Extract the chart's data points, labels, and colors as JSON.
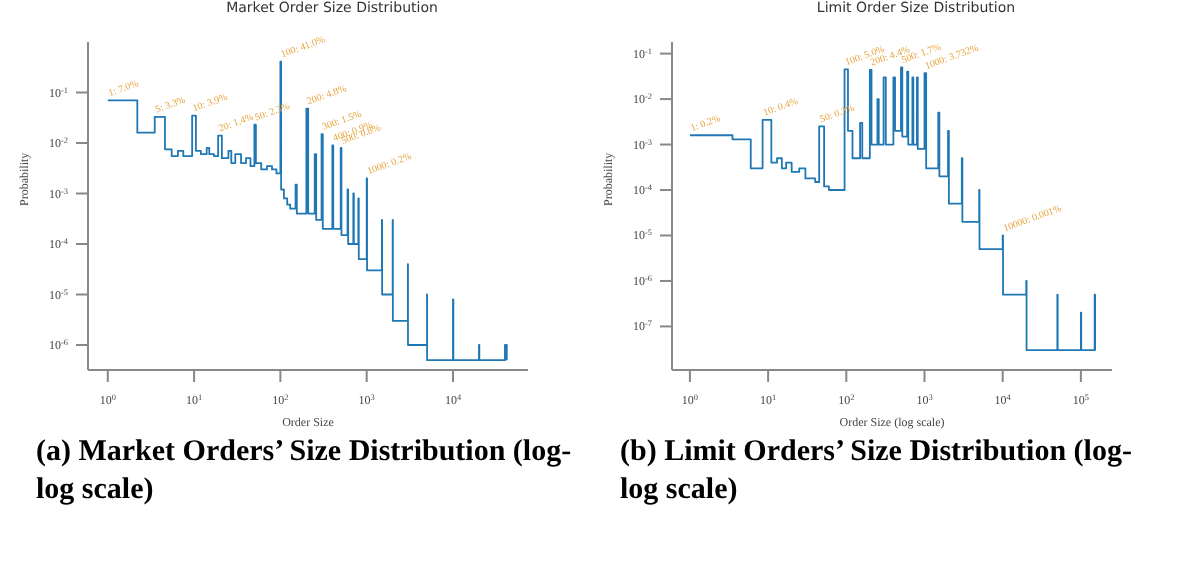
{
  "chart_data": [
    {
      "type": "step",
      "title": "Market Order Size Distribution",
      "xlabel": "Order Size",
      "ylabel": "Probability",
      "log": "xy",
      "xlim": [
        0.59,
        74000
      ],
      "ylim": [
        3.2e-07,
        1
      ],
      "xticks": [
        {
          "value": 1,
          "label": "10$^{0}$"
        },
        {
          "value": 10,
          "label": "10$^{1}$"
        },
        {
          "value": 100,
          "label": "10$^{2}$"
        },
        {
          "value": 1000,
          "label": "10$^{3}$"
        },
        {
          "value": 10000,
          "label": "10$^{4}$"
        }
      ],
      "yticks": [
        {
          "value": 0.1,
          "label": "10$^{-1}$"
        },
        {
          "value": 0.01,
          "label": "10$^{-2}$"
        },
        {
          "value": 0.001,
          "label": "10$^{-3}$"
        },
        {
          "value": 0.0001,
          "label": "10$^{-4}$"
        },
        {
          "value": 1e-05,
          "label": "10$^{-5}$"
        },
        {
          "value": 1e-06,
          "label": "10$^{-6}$"
        }
      ],
      "x": [
        1,
        2.2,
        3.5,
        4.6,
        5.5,
        6.5,
        7.5,
        9.5,
        10.5,
        12,
        14,
        15,
        17,
        19,
        21,
        25,
        27,
        30,
        35,
        40,
        45,
        50,
        52,
        60,
        70,
        80,
        90,
        100,
        102,
        110,
        120,
        130,
        150,
        155,
        200,
        210,
        250,
        260,
        300,
        310,
        400,
        410,
        500,
        510,
        600,
        610,
        700,
        710,
        800,
        810,
        1000,
        1010,
        1500,
        1510,
        2000,
        2010,
        3000,
        3010,
        5000,
        5010,
        10000,
        10100,
        20000,
        20200,
        40000,
        42000
      ],
      "series": [
        {
          "color": "#1f77b4",
          "values": [
            0.07,
            0.016,
            0.033,
            0.0075,
            0.0055,
            0.007,
            0.0055,
            0.035,
            0.007,
            0.006,
            0.008,
            0.006,
            0.0055,
            0.014,
            0.005,
            0.007,
            0.004,
            0.006,
            0.004,
            0.005,
            0.0035,
            0.023,
            0.004,
            0.003,
            0.0035,
            0.003,
            0.0025,
            0.41,
            0.0012,
            0.0008,
            0.0006,
            0.0005,
            0.0015,
            0.0004,
            0.048,
            0.0004,
            0.006,
            0.0003,
            0.015,
            0.0002,
            0.009,
            0.0002,
            0.008,
            0.00015,
            0.0012,
            0.0001,
            0.001,
            0.0001,
            0.0008,
            5e-05,
            0.002,
            3e-05,
            0.0003,
            1e-05,
            0.0003,
            3e-06,
            4e-05,
            1e-06,
            1e-05,
            5e-07,
            8e-06,
            5e-07,
            1e-06,
            5e-07,
            1e-06,
            5e-07
          ]
        }
      ],
      "annotations": [
        {
          "text": "1: 7.0%",
          "x": 1,
          "y": 0.07
        },
        {
          "text": "5: 3.3%",
          "x": 3.5,
          "y": 0.033
        },
        {
          "text": "10: 3.9%",
          "x": 9.5,
          "y": 0.035
        },
        {
          "text": "20: 1.4%",
          "x": 19,
          "y": 0.014
        },
        {
          "text": "50: 2.3%",
          "x": 50,
          "y": 0.023
        },
        {
          "text": "100: 41.0%",
          "x": 100,
          "y": 0.41
        },
        {
          "text": "200: 4.8%",
          "x": 200,
          "y": 0.048
        },
        {
          "text": "300: 1.5%",
          "x": 300,
          "y": 0.015
        },
        {
          "text": "400: 0.9%",
          "x": 400,
          "y": 0.009
        },
        {
          "text": "500: 0.8%",
          "x": 500,
          "y": 0.008
        },
        {
          "text": "1000: 0.2%",
          "x": 1000,
          "y": 0.002
        },
        "(a) Market Orders’ Size Distribution (log-log scale)"
      ]
    },
    {
      "type": "step",
      "title": "Limit Order Size Distribution",
      "xlabel": "Order Size (log scale)",
      "ylabel": "Probability",
      "log": "xy",
      "xlim": [
        0.59,
        250000
      ],
      "ylim": [
        1.1e-08,
        0.18
      ],
      "xticks": [
        {
          "value": 1,
          "label": "10$^{0}$"
        },
        {
          "value": 10,
          "label": "10$^{1}$"
        },
        {
          "value": 100,
          "label": "10$^{2}$"
        },
        {
          "value": 1000,
          "label": "10$^{3}$"
        },
        {
          "value": 10000,
          "label": "10$^{4}$"
        },
        {
          "value": 100000,
          "label": "10$^{5}$"
        }
      ],
      "yticks": [
        {
          "value": 0.1,
          "label": "10$^{-1}$"
        },
        {
          "value": 0.01,
          "label": "10$^{-2}$"
        },
        {
          "value": 0.001,
          "label": "10$^{-3}$"
        },
        {
          "value": 0.0001,
          "label": "10$^{-4}$"
        },
        {
          "value": 1e-05,
          "label": "10$^{-5}$"
        },
        {
          "value": 1e-06,
          "label": "10$^{-6}$"
        },
        {
          "value": 1e-07,
          "label": "10$^{-7}$"
        }
      ],
      "x": [
        1,
        3.5,
        6,
        8.5,
        11,
        13,
        15,
        17,
        20,
        25,
        30,
        40,
        45,
        52,
        60,
        80,
        95,
        105,
        120,
        150,
        160,
        200,
        210,
        250,
        260,
        300,
        320,
        400,
        420,
        500,
        520,
        600,
        620,
        700,
        720,
        800,
        820,
        1000,
        1050,
        1500,
        1550,
        2000,
        2050,
        3000,
        3050,
        5000,
        5050,
        10000,
        10100,
        20000,
        20200,
        50000,
        50500,
        100000,
        101000,
        150000,
        152000
      ],
      "series": [
        {
          "color": "#1f77b4",
          "values": [
            0.0016,
            0.0013,
            0.0003,
            0.0035,
            0.0004,
            0.0005,
            0.0003,
            0.0004,
            0.00025,
            0.0003,
            0.00018,
            0.00015,
            0.0025,
            0.00012,
            0.0001,
            0.0001,
            0.045,
            0.002,
            0.0005,
            0.003,
            0.0005,
            0.044,
            0.001,
            0.01,
            0.001,
            0.03,
            0.001,
            0.03,
            0.002,
            0.05,
            0.0015,
            0.04,
            0.001,
            0.03,
            0.001,
            0.03,
            0.0008,
            0.037,
            0.0003,
            0.005,
            0.0002,
            0.002,
            5e-05,
            0.0005,
            2e-05,
            0.0001,
            5e-06,
            1e-05,
            5e-07,
            1e-06,
            3e-08,
            5e-07,
            3e-08,
            2e-07,
            3e-08,
            5e-07,
            3e-08
          ]
        }
      ],
      "annotations": [
        {
          "text": "1: 0.2%",
          "x": 1,
          "y": 0.0016
        },
        {
          "text": "10: 0.4%",
          "x": 8.5,
          "y": 0.0035
        },
        {
          "text": "50: 0.3%",
          "x": 45,
          "y": 0.0025
        },
        {
          "text": "100: 5.0%",
          "x": 95,
          "y": 0.045
        },
        {
          "text": "200: 4.4%",
          "x": 200,
          "y": 0.044
        },
        {
          "text": "500: 1.7%",
          "x": 500,
          "y": 0.05
        },
        {
          "text": "1000: 3.732%",
          "x": 1000,
          "y": 0.037
        },
        {
          "text": "10000: 0.001%",
          "x": 10000,
          "y": 1e-05
        },
        "(b) Limit Orders’ Size Distribution (log-log scale)"
      ]
    }
  ]
}
